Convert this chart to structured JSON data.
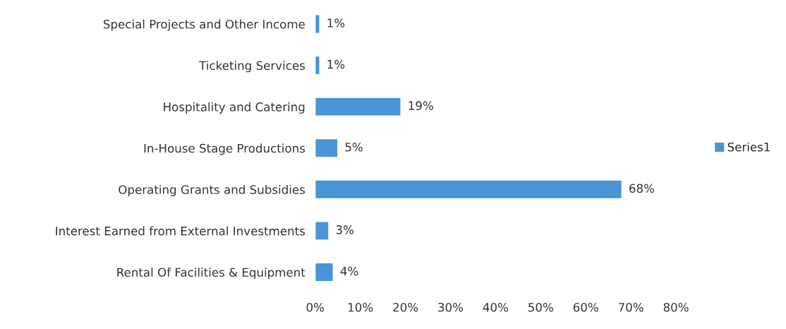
{
  "chart_data": {
    "type": "bar",
    "orientation": "horizontal",
    "categories": [
      "Special Projects and Other Income",
      "Ticketing Services",
      "Hospitality and Catering",
      "In-House Stage Productions",
      "Operating Grants and Subsidies",
      "Interest Earned from External Investments",
      "Rental Of Facilities & Equipment"
    ],
    "series": [
      {
        "name": "Series1",
        "color": "#4a94d8",
        "values": [
          1,
          1,
          19,
          5,
          68,
          3,
          4
        ],
        "value_labels": [
          "1%",
          "1%",
          "19%",
          "5%",
          "68%",
          "3%",
          "4%"
        ]
      }
    ],
    "xlim": [
      0,
      80
    ],
    "xticks": [
      {
        "value": 0,
        "label": "0%"
      },
      {
        "value": 10,
        "label": "10%"
      },
      {
        "value": 20,
        "label": "20%"
      },
      {
        "value": 30,
        "label": "30%"
      },
      {
        "value": 40,
        "label": "40%"
      },
      {
        "value": 50,
        "label": "50%"
      },
      {
        "value": 60,
        "label": "60%"
      },
      {
        "value": 70,
        "label": "70%"
      },
      {
        "value": 80,
        "label": "80%"
      }
    ],
    "grid": false,
    "legend": "right"
  }
}
